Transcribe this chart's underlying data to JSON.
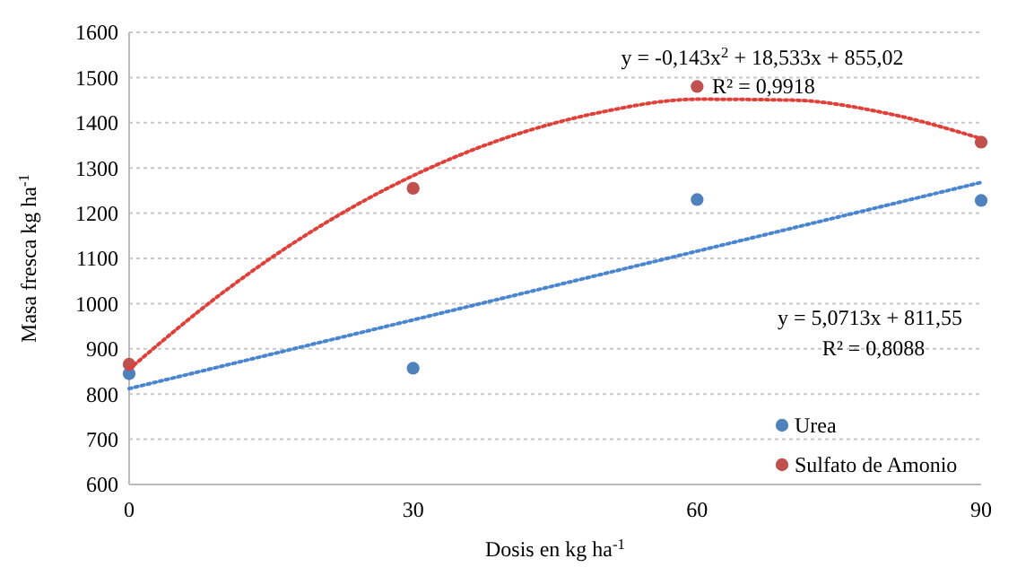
{
  "chart_data": {
    "type": "scatter",
    "xlabel": "Dosis en kg ha$^{-1}$",
    "ylabel": "Masa fresca kg ha$^{-1}$",
    "xlim": [
      0,
      90
    ],
    "xticks": [
      0,
      30,
      60,
      90
    ],
    "ylim": [
      600,
      1600
    ],
    "yticks": [
      600,
      700,
      800,
      900,
      1000,
      1100,
      1200,
      1300,
      1400,
      1500,
      1600
    ],
    "grid": "y",
    "legend": "bottom right",
    "marker": "circle",
    "series": [
      {
        "name": "Urea",
        "color": "#4f81bd",
        "x": [
          0,
          30,
          60,
          90
        ],
        "values": [
          845,
          857,
          1230,
          1228
        ]
      },
      {
        "name": "Sulfato de Amonio",
        "color": "#c0504d",
        "x": [
          0,
          30,
          60,
          90
        ],
        "values": [
          866,
          1255,
          1480,
          1357
        ]
      },
      {
        "type": "line",
        "color": "#4a86d0",
        "line_style": "dotted",
        "marker": "none",
        "x": [
          0,
          90
        ],
        "values": [
          812,
          1268
        ]
      },
      {
        "type": "line",
        "color": "#e0403a",
        "line_style": "dotted",
        "marker": "none",
        "x": [
          0,
          10,
          20,
          30,
          40,
          50,
          60,
          70,
          80,
          90
        ],
        "values": [
          855,
          1026,
          1169,
          1283,
          1368,
          1424,
          1452,
          1450,
          1421,
          1365
        ]
      }
    ],
    "annotations": [
      "y = -0,143x$^{2}$  + 18,533x  + 855,02",
      "R² = 0,9918",
      "y = 5,0713x   + 811,55",
      "R² = 0,8088"
    ]
  }
}
